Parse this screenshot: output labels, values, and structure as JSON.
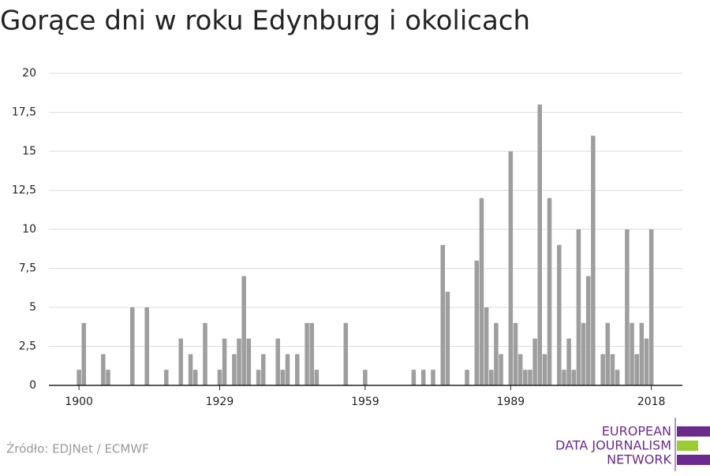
{
  "chart_data": {
    "type": "bar",
    "title": "Gorące dni w roku Edynburg i okolicach",
    "source": "Źródło: EDJNet / ECMWF",
    "logo": [
      "EUROPEAN",
      "DATA JOURNALISM",
      "NETWORK"
    ],
    "color": "#9e9e9e",
    "grid": true,
    "x": [
      1900,
      1901,
      1905,
      1906,
      1911,
      1914,
      1918,
      1921,
      1923,
      1924,
      1926,
      1929,
      1930,
      1932,
      1933,
      1934,
      1935,
      1937,
      1938,
      1941,
      1942,
      1943,
      1945,
      1947,
      1948,
      1949,
      1955,
      1959,
      1969,
      1971,
      1973,
      1975,
      1976,
      1980,
      1982,
      1983,
      1984,
      1985,
      1986,
      1987,
      1989,
      1990,
      1991,
      1992,
      1993,
      1994,
      1995,
      1996,
      1997,
      1999,
      2000,
      2001,
      2002,
      2003,
      2004,
      2005,
      2006,
      2008,
      2009,
      2010,
      2011,
      2013,
      2014,
      2015,
      2016,
      2017,
      2018
    ],
    "values": [
      1,
      4,
      2,
      1,
      5,
      5,
      1,
      3,
      2,
      1,
      4,
      1,
      3,
      2,
      3,
      7,
      3,
      1,
      2,
      3,
      1,
      2,
      2,
      4,
      4,
      1,
      4,
      1,
      1,
      1,
      1,
      9,
      6,
      1,
      8,
      12,
      5,
      1,
      4,
      2,
      15,
      4,
      2,
      1,
      1,
      3,
      18,
      2,
      12,
      9,
      1,
      3,
      1,
      10,
      4,
      7,
      16,
      2,
      4,
      2,
      1,
      10,
      4,
      2,
      4,
      3,
      10
    ],
    "xlim": [
      1893.8,
      2024.4
    ],
    "xticks": [
      1900,
      1929,
      1959,
      1989,
      2018
    ],
    "ylim": [
      0,
      20
    ],
    "yticks": [
      0,
      {
        "value": 2.5,
        "label": "2,5"
      },
      5,
      {
        "value": 7.5,
        "label": "7,5"
      },
      10,
      {
        "value": 12.5,
        "label": "12,5"
      },
      15,
      {
        "value": 17.5,
        "label": "17,5"
      },
      20
    ]
  }
}
